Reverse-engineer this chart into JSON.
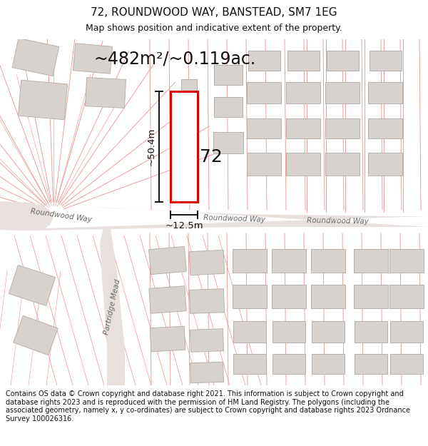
{
  "title": "72, ROUNDWOOD WAY, BANSTEAD, SM7 1EG",
  "subtitle": "Map shows position and indicative extent of the property.",
  "area_text": "~482m²/~0.119ac.",
  "dim_height": "~50.4m",
  "dim_width": "~12.5m",
  "label_72": "72",
  "footer": "Contains OS data © Crown copyright and database right 2021. This information is subject to Crown copyright and database rights 2023 and is reproduced with the permission of HM Land Registry. The polygons (including the associated geometry, namely x, y co-ordinates) are subject to Crown copyright and database rights 2023 Ordnance Survey 100026316.",
  "map_bg": "#f2eeec",
  "building_fill": "#d8d2ce",
  "building_stroke": "#b8b0aa",
  "plot_stroke": "#dd0000",
  "plot_fill": "#ffffff",
  "dim_line_color": "#111111",
  "road_label_color": "#666666",
  "title_color": "#111111",
  "footer_color": "#111111",
  "pink_line_color": "#e89090",
  "road_fill": "#e8e0dc",
  "white": "#ffffff"
}
